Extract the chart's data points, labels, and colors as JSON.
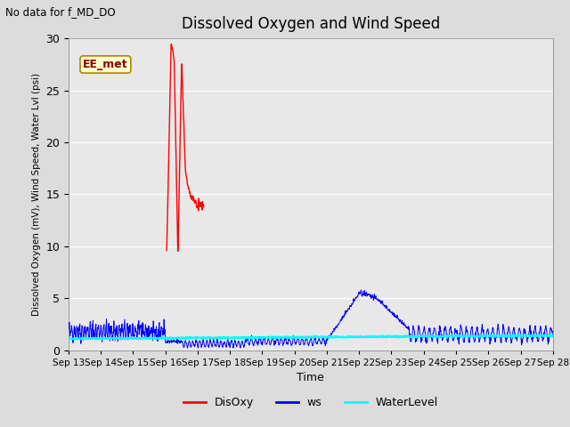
{
  "title": "Dissolved Oxygen and Wind Speed",
  "top_left_text": "No data for f_MD_DO",
  "ylabel": "Dissolved Oxygen (mV), Wind Speed, Water Lvl (psi)",
  "xlabel": "Time",
  "ylim": [
    0,
    30
  ],
  "x_tick_labels": [
    "Sep 13",
    "Sep 14",
    "Sep 15",
    "Sep 16",
    "Sep 17",
    "Sep 18",
    "Sep 19",
    "Sep 20",
    "Sep 21",
    "Sep 22",
    "Sep 23",
    "Sep 24",
    "Sep 25",
    "Sep 26",
    "Sep 27",
    "Sep 28"
  ],
  "annotation_text": "EE_met",
  "annotation_color": "#cc8800",
  "bg_color": "#dcdcdc",
  "plot_bg_color": "#e8e8e8",
  "disoxy_color": "red",
  "ws_color": "blue",
  "water_color": "cyan",
  "legend_labels": [
    "DisOxy",
    "ws",
    "WaterLevel"
  ]
}
